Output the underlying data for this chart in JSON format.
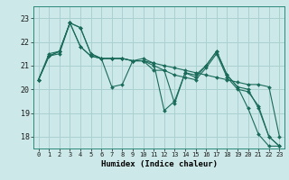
{
  "xlabel": "Humidex (Indice chaleur)",
  "background_color": "#cce8e8",
  "grid_color": "#aad0d0",
  "line_color": "#1a6b5a",
  "xlim": [
    -0.5,
    23.5
  ],
  "ylim": [
    17.5,
    23.5
  ],
  "yticks": [
    18,
    19,
    20,
    21,
    22,
    23
  ],
  "xticks": [
    0,
    1,
    2,
    3,
    4,
    5,
    6,
    7,
    8,
    9,
    10,
    11,
    12,
    13,
    14,
    15,
    16,
    17,
    18,
    19,
    20,
    21,
    22,
    23
  ],
  "series": [
    [
      20.4,
      21.4,
      21.5,
      22.8,
      22.6,
      21.5,
      21.3,
      20.1,
      20.2,
      21.2,
      21.3,
      21.1,
      19.1,
      19.5,
      20.7,
      20.5,
      21.0,
      21.6,
      20.6,
      20.1,
      19.2,
      18.1,
      17.6,
      17.6
    ],
    [
      20.4,
      21.4,
      21.6,
      22.8,
      21.8,
      21.4,
      21.3,
      21.3,
      21.3,
      21.2,
      21.2,
      21.1,
      21.0,
      20.9,
      20.8,
      20.7,
      20.6,
      20.5,
      20.4,
      20.3,
      20.2,
      20.2,
      20.1,
      18.0
    ],
    [
      20.4,
      21.4,
      21.6,
      22.8,
      21.8,
      21.4,
      21.3,
      21.3,
      21.3,
      21.2,
      21.2,
      21.0,
      20.8,
      20.6,
      20.5,
      20.4,
      20.9,
      21.5,
      20.5,
      20.0,
      19.9,
      19.3,
      18.0,
      17.6
    ],
    [
      20.4,
      21.5,
      21.6,
      22.8,
      22.6,
      21.5,
      21.3,
      21.3,
      21.3,
      21.2,
      21.2,
      20.8,
      20.8,
      19.4,
      20.7,
      20.6,
      21.0,
      21.6,
      20.6,
      20.1,
      20.0,
      19.2,
      18.0,
      17.6
    ]
  ]
}
